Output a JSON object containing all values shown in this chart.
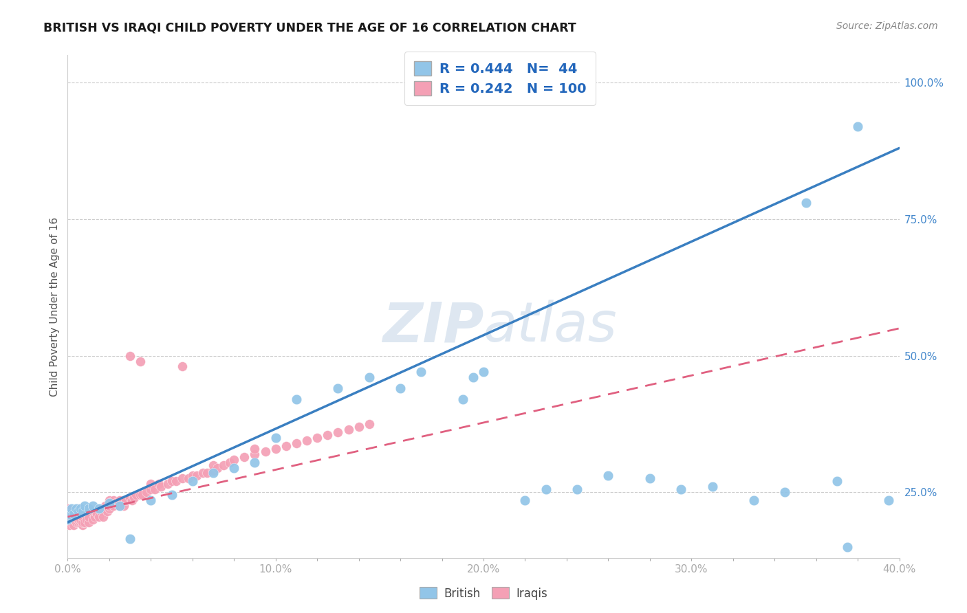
{
  "title": "BRITISH VS IRAQI CHILD POVERTY UNDER THE AGE OF 16 CORRELATION CHART",
  "source": "Source: ZipAtlas.com",
  "ylabel": "Child Poverty Under the Age of 16",
  "xlim": [
    0.0,
    0.4
  ],
  "ylim": [
    0.13,
    1.05
  ],
  "xtick_labels": [
    "0.0%",
    "",
    "",
    "",
    "",
    "10.0%",
    "",
    "",
    "",
    "",
    "20.0%",
    "",
    "",
    "",
    "",
    "30.0%",
    "",
    "",
    "",
    "",
    "40.0%"
  ],
  "xtick_values": [
    0.0,
    0.02,
    0.04,
    0.06,
    0.08,
    0.1,
    0.12,
    0.14,
    0.16,
    0.18,
    0.2,
    0.22,
    0.24,
    0.26,
    0.28,
    0.3,
    0.32,
    0.34,
    0.36,
    0.38,
    0.4
  ],
  "ytick_labels": [
    "25.0%",
    "50.0%",
    "75.0%",
    "100.0%"
  ],
  "ytick_values": [
    0.25,
    0.5,
    0.75,
    1.0
  ],
  "british_R": 0.444,
  "british_N": 44,
  "iraqi_R": 0.242,
  "iraqi_N": 100,
  "british_color": "#92C5E8",
  "iraqi_color": "#F4A0B5",
  "british_line_color": "#3A7FC1",
  "iraqi_line_color": "#E06080",
  "watermark_color": "#C8D8E8",
  "background_color": "#FFFFFF",
  "brit_line_x0": 0.0,
  "brit_line_y0": 0.195,
  "brit_line_x1": 0.4,
  "brit_line_y1": 0.88,
  "iraqi_line_x0": 0.0,
  "iraqi_line_y0": 0.205,
  "iraqi_line_x1": 0.4,
  "iraqi_line_y1": 0.55,
  "british_pts_x": [
    0.0,
    0.001,
    0.002,
    0.003,
    0.004,
    0.005,
    0.006,
    0.007,
    0.008,
    0.01,
    0.012,
    0.015,
    0.02,
    0.025,
    0.03,
    0.04,
    0.05,
    0.06,
    0.07,
    0.08,
    0.09,
    0.1,
    0.11,
    0.13,
    0.145,
    0.16,
    0.17,
    0.19,
    0.195,
    0.2,
    0.22,
    0.23,
    0.245,
    0.26,
    0.28,
    0.295,
    0.31,
    0.33,
    0.345,
    0.355,
    0.37,
    0.375,
    0.38,
    0.395
  ],
  "british_pts_y": [
    0.2,
    0.21,
    0.22,
    0.21,
    0.22,
    0.215,
    0.22,
    0.215,
    0.225,
    0.22,
    0.225,
    0.22,
    0.23,
    0.225,
    0.165,
    0.235,
    0.245,
    0.27,
    0.285,
    0.295,
    0.305,
    0.35,
    0.42,
    0.44,
    0.46,
    0.44,
    0.47,
    0.42,
    0.46,
    0.47,
    0.235,
    0.255,
    0.255,
    0.28,
    0.275,
    0.255,
    0.26,
    0.235,
    0.25,
    0.78,
    0.27,
    0.15,
    0.92,
    0.235
  ],
  "iraqi_pts_x": [
    0.0,
    0.0,
    0.0,
    0.0,
    0.001,
    0.001,
    0.001,
    0.002,
    0.002,
    0.003,
    0.003,
    0.003,
    0.004,
    0.004,
    0.004,
    0.005,
    0.005,
    0.005,
    0.005,
    0.006,
    0.006,
    0.006,
    0.007,
    0.007,
    0.007,
    0.007,
    0.008,
    0.008,
    0.009,
    0.009,
    0.01,
    0.01,
    0.01,
    0.012,
    0.012,
    0.013,
    0.013,
    0.014,
    0.015,
    0.015,
    0.016,
    0.017,
    0.018,
    0.018,
    0.019,
    0.02,
    0.02,
    0.02,
    0.022,
    0.022,
    0.023,
    0.025,
    0.025,
    0.026,
    0.027,
    0.028,
    0.03,
    0.03,
    0.031,
    0.032,
    0.033,
    0.035,
    0.035,
    0.036,
    0.038,
    0.04,
    0.04,
    0.042,
    0.044,
    0.045,
    0.048,
    0.05,
    0.052,
    0.055,
    0.055,
    0.058,
    0.06,
    0.062,
    0.065,
    0.067,
    0.07,
    0.07,
    0.072,
    0.075,
    0.078,
    0.08,
    0.085,
    0.09,
    0.09,
    0.095,
    0.1,
    0.105,
    0.11,
    0.115,
    0.12,
    0.125,
    0.13,
    0.135,
    0.14,
    0.145
  ],
  "iraqi_pts_y": [
    0.195,
    0.205,
    0.215,
    0.22,
    0.19,
    0.2,
    0.21,
    0.195,
    0.205,
    0.19,
    0.2,
    0.215,
    0.195,
    0.205,
    0.215,
    0.195,
    0.2,
    0.21,
    0.22,
    0.195,
    0.2,
    0.21,
    0.19,
    0.195,
    0.205,
    0.215,
    0.195,
    0.21,
    0.2,
    0.215,
    0.195,
    0.205,
    0.22,
    0.2,
    0.215,
    0.205,
    0.215,
    0.21,
    0.205,
    0.22,
    0.215,
    0.205,
    0.22,
    0.225,
    0.215,
    0.22,
    0.225,
    0.235,
    0.225,
    0.235,
    0.23,
    0.225,
    0.235,
    0.23,
    0.225,
    0.235,
    0.24,
    0.5,
    0.235,
    0.24,
    0.245,
    0.245,
    0.49,
    0.245,
    0.25,
    0.255,
    0.265,
    0.255,
    0.265,
    0.26,
    0.265,
    0.27,
    0.27,
    0.275,
    0.48,
    0.275,
    0.28,
    0.28,
    0.285,
    0.285,
    0.29,
    0.3,
    0.295,
    0.3,
    0.305,
    0.31,
    0.315,
    0.32,
    0.33,
    0.325,
    0.33,
    0.335,
    0.34,
    0.345,
    0.35,
    0.355,
    0.36,
    0.365,
    0.37,
    0.375
  ]
}
